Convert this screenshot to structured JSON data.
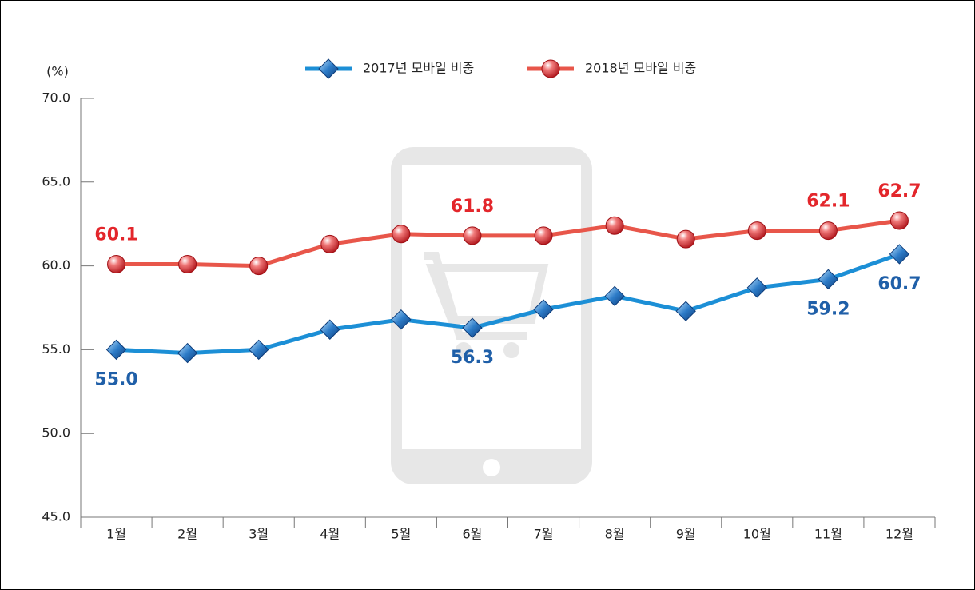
{
  "chart_data": {
    "type": "line",
    "y_label": "(%)",
    "categories": [
      "1월",
      "2월",
      "3월",
      "4월",
      "5월",
      "6월",
      "7월",
      "8월",
      "9월",
      "10월",
      "11월",
      "12월"
    ],
    "series": [
      {
        "name": "2017년 모바일 비중",
        "color": "#1c8fd6",
        "label_color": "#1f5fa8",
        "marker": "diamond",
        "values": [
          55.0,
          54.8,
          55.0,
          56.2,
          56.8,
          56.3,
          57.4,
          58.2,
          57.3,
          58.7,
          59.2,
          60.7
        ],
        "value_labels": [
          "55.0",
          null,
          null,
          null,
          null,
          "56.3",
          null,
          null,
          null,
          null,
          "59.2",
          "60.7"
        ]
      },
      {
        "name": "2018년 모바일 비중",
        "color": "#e8564a",
        "label_color": "#e3262b",
        "marker": "circle",
        "values": [
          60.1,
          60.1,
          60.0,
          61.3,
          61.9,
          61.8,
          61.8,
          62.4,
          61.6,
          62.1,
          62.1,
          62.7
        ],
        "value_labels": [
          "60.1",
          null,
          null,
          null,
          null,
          "61.8",
          null,
          null,
          null,
          null,
          "62.1",
          "62.7"
        ]
      }
    ],
    "ylim": [
      45,
      70
    ],
    "yticks": [
      {
        "value": 45,
        "label": "45.0"
      },
      {
        "value": 50,
        "label": "50.0"
      },
      {
        "value": 55,
        "label": "55.0"
      },
      {
        "value": 60,
        "label": "60.0"
      },
      {
        "value": 65,
        "label": "65.0"
      },
      {
        "value": 70,
        "label": "70.0"
      }
    ],
    "legend": "top"
  }
}
